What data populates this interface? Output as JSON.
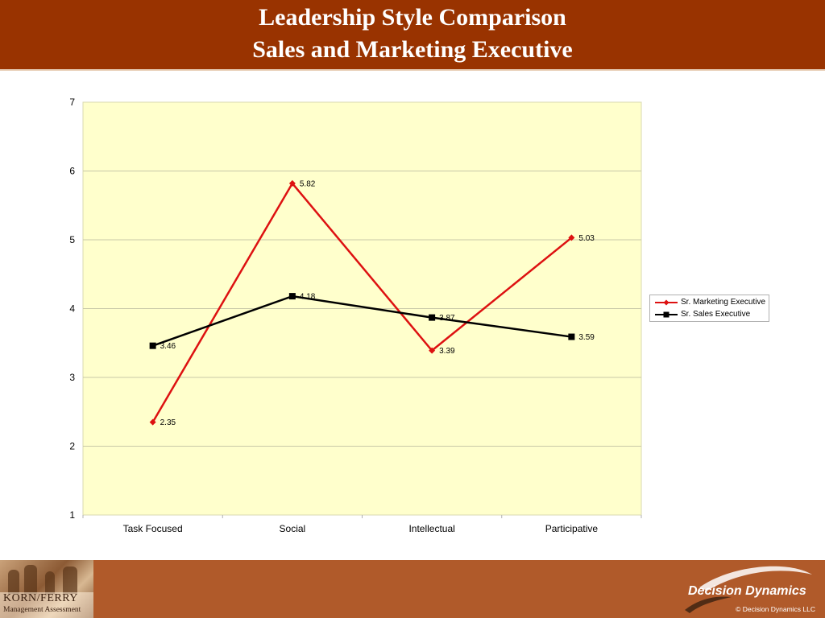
{
  "header": {
    "title_line1": "Leadership Style Comparison",
    "title_line2": "Sales and Marketing Executive"
  },
  "colors": {
    "header_bg": "#993300",
    "footer_bg": "#b05a2a",
    "plot_bg": "#ffffcc",
    "marketing_series": "#dd1111",
    "sales_series": "#000000"
  },
  "chart_data": {
    "type": "line",
    "categories": [
      "Task Focused",
      "Social",
      "Intellectual",
      "Participative"
    ],
    "series": [
      {
        "name": "Sr. Marketing Executive",
        "values": [
          2.35,
          5.82,
          3.39,
          5.03
        ],
        "color": "#dd1111",
        "marker": "diamond"
      },
      {
        "name": "Sr. Sales Executive",
        "values": [
          3.46,
          4.18,
          3.87,
          3.59
        ],
        "color": "#000000",
        "marker": "square"
      }
    ],
    "data_labels": {
      "marketing": [
        "2.35",
        "5.82",
        "3.39",
        "5.03"
      ],
      "sales": [
        "3.46",
        "4.18",
        "3.87",
        "3.59"
      ]
    },
    "title": "",
    "xlabel": "",
    "ylabel": "",
    "ylim": [
      1,
      7
    ],
    "yticks": [
      "1",
      "2",
      "3",
      "4",
      "5",
      "6",
      "7"
    ],
    "grid": true,
    "legend_position": "right"
  },
  "footer": {
    "left_logo_name": "KORN/FERRY",
    "left_logo_sub": "Management Assessment",
    "right_logo_name": "Decision Dynamics",
    "copyright": "© Decision Dynamics LLC"
  }
}
